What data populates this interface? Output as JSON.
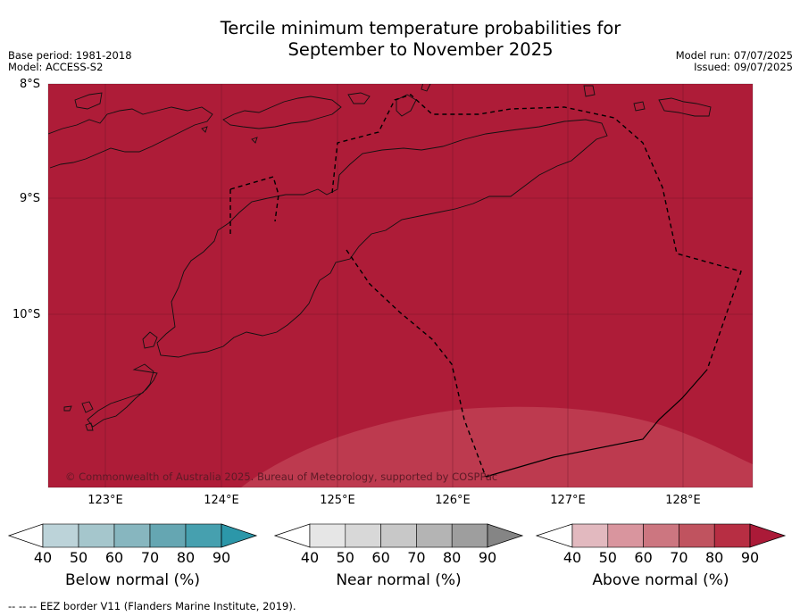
{
  "title_line1": "Tercile minimum temperature probabilities for",
  "title_line2": "September to November 2025",
  "meta_left": {
    "base_period": "Base period: 1981-2018",
    "model": "Model: ACCESS-S2"
  },
  "meta_right": {
    "model_run": "Model run: 07/07/2025",
    "issued": "Issued: 09/07/2025"
  },
  "lat_labels": [
    "8°S",
    "9°S",
    "10°S"
  ],
  "lon_labels": [
    "123°E",
    "124°E",
    "125°E",
    "126°E",
    "127°E",
    "128°E"
  ],
  "copyright": "© Commonwealth of Australia 2025. Bureau of Meteorology, supported by COSPPac",
  "colorbars": [
    {
      "title": "Below normal (%)",
      "ticks": [
        "40",
        "50",
        "60",
        "70",
        "80",
        "90"
      ],
      "colors": [
        "#ffffff",
        "#bcd3d9",
        "#a5c6cc",
        "#87b6bf",
        "#65a6b2",
        "#46a0af",
        "#2c97a9"
      ]
    },
    {
      "title": "Near normal (%)",
      "ticks": [
        "40",
        "50",
        "60",
        "70",
        "80",
        "90"
      ],
      "colors": [
        "#ffffff",
        "#e6e6e6",
        "#d8d8d8",
        "#c8c8c8",
        "#b4b4b4",
        "#9e9e9e",
        "#858585"
      ]
    },
    {
      "title": "Above normal (%)",
      "ticks": [
        "40",
        "50",
        "60",
        "70",
        "80",
        "90"
      ],
      "colors": [
        "#ffffff",
        "#e2b9bf",
        "#d9959e",
        "#cc7680",
        "#c0535f",
        "#b72e43",
        "#ab1a38"
      ]
    }
  ],
  "map_colors": {
    "above_90": "#ae1c38",
    "above_80": "#bd3a4f"
  },
  "footer": "--  --  -- EEZ border V11 (Flanders Marine Institute, 2019)."
}
